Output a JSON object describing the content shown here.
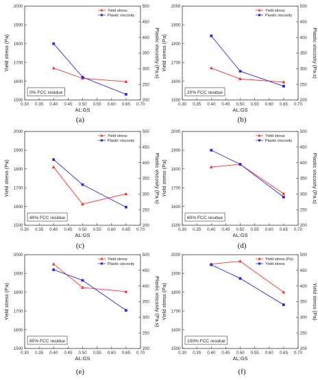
{
  "colors": {
    "series_1": "#ff2a2a",
    "series_2": "#2b2bd6",
    "axis": "#333333"
  },
  "chart_data": [
    {
      "type": "line",
      "caption": "(a)",
      "annotation": "0% FCC residue",
      "xlabel": "AL:GS",
      "ylabel": "Yield stress (Pa)",
      "y2label": "Plastic viscosity (Pa.s)",
      "xlim": [
        0.3,
        0.7
      ],
      "ylim": [
        1500,
        2000
      ],
      "y2lim": [
        200,
        500
      ],
      "xticks": [
        "0.30",
        "0.35",
        "0.40",
        "0.45",
        "0.50",
        "0.55",
        "0.60",
        "0.65",
        "0.70"
      ],
      "yticks": [
        "1500",
        "1600",
        "1700",
        "1800",
        "1900",
        "2000"
      ],
      "y2ticks": [
        "200",
        "250",
        "300",
        "350",
        "400",
        "450",
        "500"
      ],
      "legend_position": "top-right",
      "series": [
        {
          "name": "Yield stress",
          "axis": "left",
          "marker": "triangle",
          "color": "#ff2a2a",
          "x": [
            0.4,
            0.5,
            0.65
          ],
          "y": [
            1670,
            1615,
            1598
          ]
        },
        {
          "name": "Plastic viscosity",
          "axis": "right",
          "marker": "square",
          "color": "#2b2bd6",
          "x": [
            0.4,
            0.5,
            0.65
          ],
          "y": [
            380,
            273,
            218
          ]
        }
      ]
    },
    {
      "type": "line",
      "caption": "(b)",
      "annotation": "20% FCC residue",
      "xlabel": "AL:GS",
      "ylabel": "Yield stress (Pa)",
      "y2label": "Plastic viscosity (Pa.s)",
      "xlim": [
        0.3,
        0.7
      ],
      "ylim": [
        1500,
        2000
      ],
      "y2lim": [
        200,
        500
      ],
      "xticks": [
        "0.30",
        "0.35",
        "0.40",
        "0.45",
        "0.50",
        "0.55",
        "0.60",
        "0.65",
        "0.70"
      ],
      "yticks": [
        "1500",
        "1600",
        "1700",
        "1800",
        "1900",
        "2000"
      ],
      "y2ticks": [
        "200",
        "250",
        "300",
        "350",
        "400",
        "450",
        "500"
      ],
      "legend_position": "top-right",
      "series": [
        {
          "name": "Yield stress",
          "axis": "left",
          "marker": "triangle",
          "color": "#ff2a2a",
          "x": [
            0.4,
            0.5,
            0.65
          ],
          "y": [
            1670,
            1612,
            1595
          ]
        },
        {
          "name": "Plastic viscosity",
          "axis": "right",
          "marker": "square",
          "color": "#2b2bd6",
          "x": [
            0.4,
            0.5,
            0.65
          ],
          "y": [
            405,
            292,
            244
          ]
        }
      ]
    },
    {
      "type": "line",
      "caption": "(c)",
      "annotation": "40% FCC residue",
      "xlabel": "AL:GS",
      "ylabel": "Yield stress (Pa)",
      "y2label": "Plastic viscosity (Pa.s)",
      "xlim": [
        0.3,
        0.7
      ],
      "ylim": [
        1500,
        2000
      ],
      "y2lim": [
        200,
        500
      ],
      "xticks": [
        "0.30",
        "0.35",
        "0.40",
        "0.45",
        "0.50",
        "0.55",
        "0.60",
        "0.65",
        "0.70"
      ],
      "yticks": [
        "1500",
        "1600",
        "1700",
        "1800",
        "1900",
        "2000"
      ],
      "y2ticks": [
        "200",
        "250",
        "300",
        "350",
        "400",
        "450",
        "500"
      ],
      "legend_position": "top-right",
      "series": [
        {
          "name": "Yield stress",
          "axis": "left",
          "marker": "triangle",
          "color": "#ff2a2a",
          "x": [
            0.4,
            0.5,
            0.65
          ],
          "y": [
            1810,
            1613,
            1667
          ]
        },
        {
          "name": "Plastic viscosity",
          "axis": "right",
          "marker": "square",
          "color": "#2b2bd6",
          "x": [
            0.4,
            0.5,
            0.65
          ],
          "y": [
            410,
            330,
            258
          ]
        }
      ]
    },
    {
      "type": "line",
      "caption": "(d)",
      "annotation": "60% FCC residue",
      "xlabel": "AL:GS",
      "ylabel": "Yield stress (Pa)",
      "y2label": "Plastic viscosity (Pa.s)",
      "xlim": [
        0.3,
        0.7
      ],
      "ylim": [
        1500,
        2000
      ],
      "y2lim": [
        200,
        500
      ],
      "xticks": [
        "0.30",
        "0.35",
        "0.40",
        "0.45",
        "0.50",
        "0.55",
        "0.60",
        "0.65",
        "0.70"
      ],
      "yticks": [
        "1500",
        "1600",
        "1700",
        "1800",
        "1900",
        "2000"
      ],
      "y2ticks": [
        "200",
        "250",
        "300",
        "350",
        "400",
        "450",
        "500"
      ],
      "legend_position": "top-right",
      "series": [
        {
          "name": "Yield stress",
          "axis": "left",
          "marker": "triangle",
          "color": "#ff2a2a",
          "x": [
            0.4,
            0.5,
            0.65
          ],
          "y": [
            1810,
            1825,
            1668
          ]
        },
        {
          "name": "Plastic viscosity",
          "axis": "right",
          "marker": "square",
          "color": "#2b2bd6",
          "x": [
            0.4,
            0.5,
            0.65
          ],
          "y": [
            440,
            395,
            290
          ]
        }
      ]
    },
    {
      "type": "line",
      "caption": "(e)",
      "annotation": "80% FCC residue",
      "xlabel": "AL:GS",
      "ylabel": "Yield stress (Pa)",
      "y2label": "Plastic viscosity (Pa.s)",
      "xlim": [
        0.3,
        0.7
      ],
      "ylim": [
        1500,
        2000
      ],
      "y2lim": [
        200,
        500
      ],
      "xticks": [
        "0.30",
        "0.35",
        "0.40",
        "0.45",
        "0.50",
        "0.55",
        "0.60",
        "0.65",
        "0.70"
      ],
      "yticks": [
        "1500",
        "1600",
        "1700",
        "1800",
        "1900",
        "2000"
      ],
      "y2ticks": [
        "200",
        "250",
        "300",
        "350",
        "400",
        "450",
        "500"
      ],
      "legend_position": "top-right",
      "series": [
        {
          "name": "Yield stress",
          "axis": "left",
          "marker": "triangle",
          "color": "#ff2a2a",
          "x": [
            0.4,
            0.5,
            0.65
          ],
          "y": [
            1950,
            1825,
            1803
          ]
        },
        {
          "name": "Plastic viscosity",
          "axis": "right",
          "marker": "square",
          "color": "#2b2bd6",
          "x": [
            0.4,
            0.5,
            0.65
          ],
          "y": [
            452,
            418,
            322
          ]
        }
      ]
    },
    {
      "type": "line",
      "caption": "(f)",
      "annotation": "100% FCC residue",
      "xlabel": "AL:GS",
      "ylabel": "Yield stress (Pa)",
      "y2label": "Yield stress (Pa)",
      "xlim": [
        0.3,
        0.7
      ],
      "ylim": [
        1500,
        2000
      ],
      "y2lim": [
        200,
        500
      ],
      "xticks": [
        "0.30",
        "0.35",
        "0.40",
        "0.45",
        "0.50",
        "0.55",
        "0.60",
        "0.65",
        "0.70"
      ],
      "yticks": [
        "1500",
        "1600",
        "1700",
        "1800",
        "1900",
        "2000"
      ],
      "y2ticks": [
        "200",
        "250",
        "300",
        "350",
        "400",
        "450",
        "500"
      ],
      "legend_position": "top-right",
      "series": [
        {
          "name": "Yield stress (Pa)",
          "axis": "left",
          "marker": "triangle",
          "color": "#ff2a2a",
          "x": [
            0.4,
            0.5,
            0.65
          ],
          "y": [
            1950,
            1965,
            1800
          ]
        },
        {
          "name": "Yield stress",
          "axis": "right",
          "marker": "square",
          "color": "#2b2bd6",
          "x": [
            0.4,
            0.5,
            0.65
          ],
          "y": [
            468,
            424,
            340
          ]
        }
      ]
    }
  ]
}
